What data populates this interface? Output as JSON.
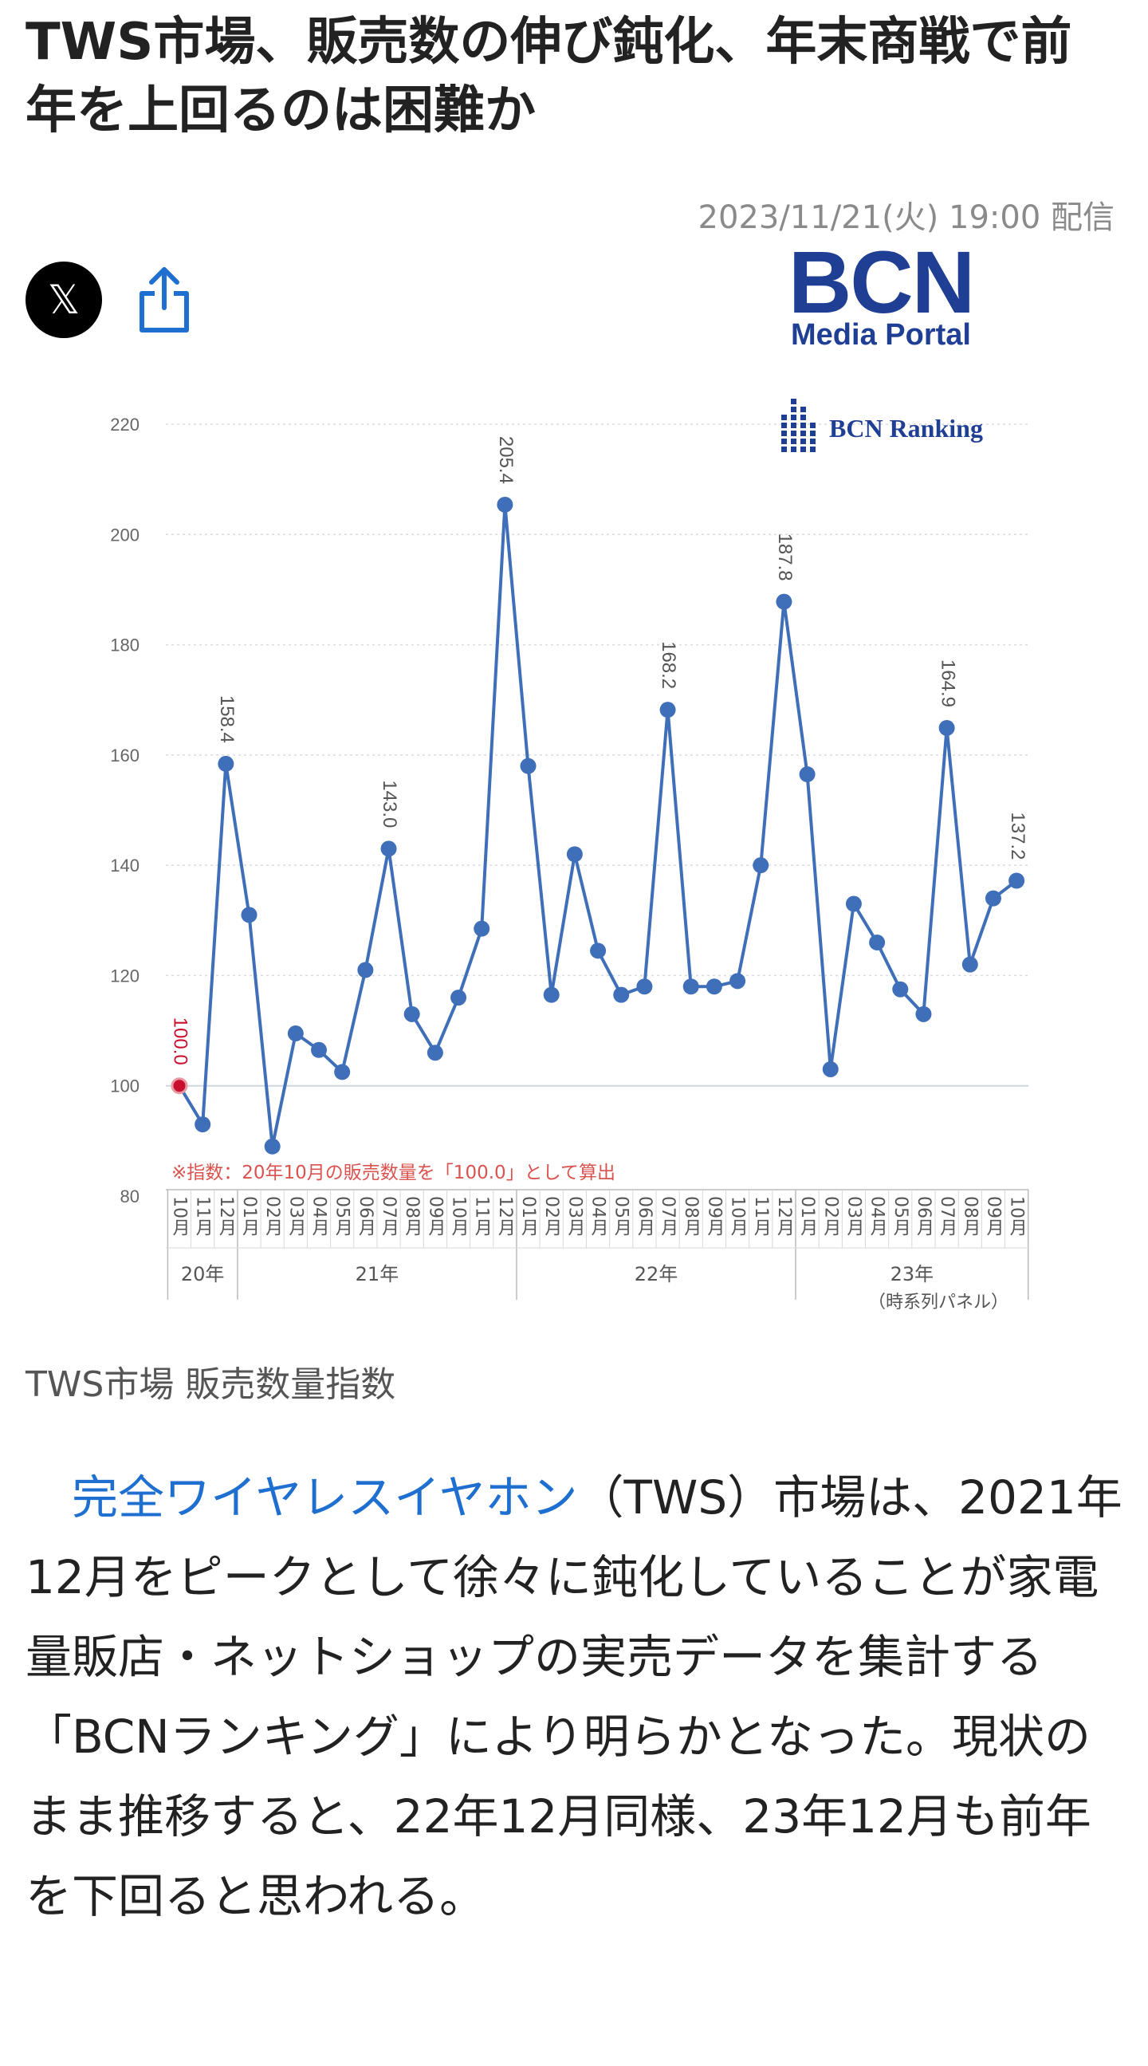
{
  "article": {
    "title": "TWS市場、販売数の伸び鈍化、年末商戦で前年を上回るのは困難か",
    "date": "2023/11/21(火) 19:00 配信",
    "share": {
      "x_icon": "x-logo-icon",
      "share_icon": "share-icon"
    },
    "logo": {
      "line1": "BCN",
      "line2": "Media Portal"
    },
    "caption": "TWS市場 販売数量指数",
    "body": {
      "indent": "　",
      "link_text": "完全ワイヤレスイヤホン",
      "text": "（TWS）市場は、2021年12月をピークとして徐々に鈍化していることが家電量販店・ネットショップの実売データを集計する「BCNランキング」により明らかとなった。現状のまま推移すると、22年12月同様、23年12月も前年を下回ると思われる。"
    },
    "colors": {
      "line": "#3f6fb8",
      "link": "#1e6fd0",
      "first_point": "#c8102e",
      "logo": "#1f3f95",
      "note": "#d9534f"
    }
  },
  "chart_data": {
    "type": "line",
    "brand": "BCN Ranking",
    "ylim": [
      80,
      220
    ],
    "yticks": [
      80,
      100,
      120,
      140,
      160,
      180,
      200,
      220
    ],
    "grid": true,
    "note": "※指数：20年10月の販売数量を「100.0」として算出",
    "corner_label": "（時系列パネル）",
    "categories": [
      "10月",
      "11月",
      "12月",
      "01月",
      "02月",
      "03月",
      "04月",
      "05月",
      "06月",
      "07月",
      "08月",
      "09月",
      "10月",
      "11月",
      "12月",
      "01月",
      "02月",
      "03月",
      "04月",
      "05月",
      "06月",
      "07月",
      "08月",
      "09月",
      "10月",
      "11月",
      "12月",
      "01月",
      "02月",
      "03月",
      "04月",
      "05月",
      "06月",
      "07月",
      "08月",
      "09月",
      "10月"
    ],
    "years": [
      {
        "label": "20年",
        "start": 0,
        "end": 2
      },
      {
        "label": "21年",
        "start": 3,
        "end": 14
      },
      {
        "label": "22年",
        "start": 15,
        "end": 26
      },
      {
        "label": "23年",
        "start": 27,
        "end": 36
      }
    ],
    "series": [
      {
        "values": [
          100.0,
          93,
          158.4,
          131,
          89,
          109.5,
          106.5,
          102.5,
          121,
          143.0,
          113,
          106,
          116,
          128.5,
          205.4,
          158,
          116.5,
          142,
          124.5,
          116.5,
          118,
          168.2,
          118,
          118,
          119,
          140,
          187.8,
          156.5,
          103,
          133,
          126,
          117.5,
          113,
          164.9,
          122,
          134,
          137.2
        ]
      }
    ],
    "data_labels": [
      {
        "index": 0,
        "text": "100.0"
      },
      {
        "index": 2,
        "text": "158.4"
      },
      {
        "index": 9,
        "text": "143.0"
      },
      {
        "index": 14,
        "text": "205.4"
      },
      {
        "index": 21,
        "text": "168.2"
      },
      {
        "index": 26,
        "text": "187.8"
      },
      {
        "index": 33,
        "text": "164.9"
      },
      {
        "index": 36,
        "text": "137.2"
      }
    ]
  }
}
